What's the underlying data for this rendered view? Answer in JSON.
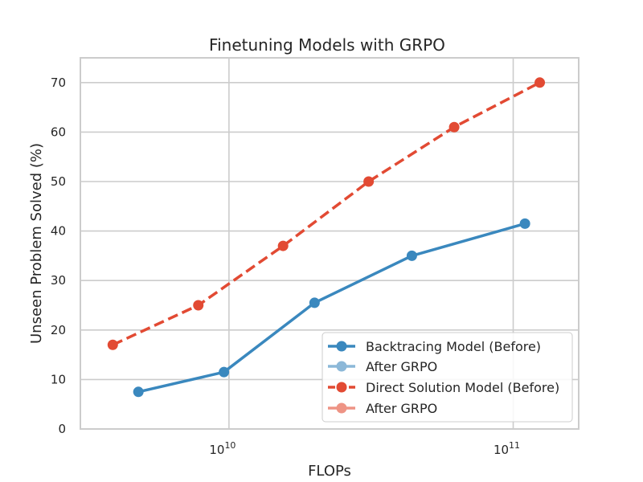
{
  "chart_data": {
    "type": "line",
    "title": "Finetuning Models with GRPO",
    "xlabel": "FLOPs",
    "ylabel": "Unseen Problem Solved (%)",
    "x_scale": "log",
    "xlim": [
      3000000000,
      170000000000
    ],
    "ylim": [
      0,
      75
    ],
    "grid": true,
    "legend_position": "lower-right",
    "x_ticks": [
      {
        "value": 10000000000,
        "base": "10",
        "exp": "10"
      },
      {
        "value": 100000000000,
        "base": "10",
        "exp": "11"
      }
    ],
    "y_ticks": [
      0,
      10,
      20,
      30,
      40,
      50,
      60,
      70
    ],
    "series": [
      {
        "name": "Backtracing Model (Before)",
        "color": "#3a88be",
        "dash": "solid",
        "x": [
          4800000000,
          9600000000,
          20000000000,
          44000000000,
          110000000000
        ],
        "y": [
          7.5,
          11.5,
          25.5,
          35,
          41.5
        ]
      },
      {
        "name": "After GRPO",
        "color": "#8cb8d8",
        "dash": "solid",
        "x": [],
        "y": []
      },
      {
        "name": "Direct Solution Model (Before)",
        "color": "#e24a33",
        "dash": "dashed",
        "x": [
          3900000000,
          7800000000,
          15500000000,
          31000000000,
          62000000000,
          124000000000
        ],
        "y": [
          17,
          25,
          37,
          50,
          61,
          70
        ]
      },
      {
        "name": "After GRPO",
        "color": "#ee9485",
        "dash": "solid",
        "x": [],
        "y": []
      }
    ]
  }
}
